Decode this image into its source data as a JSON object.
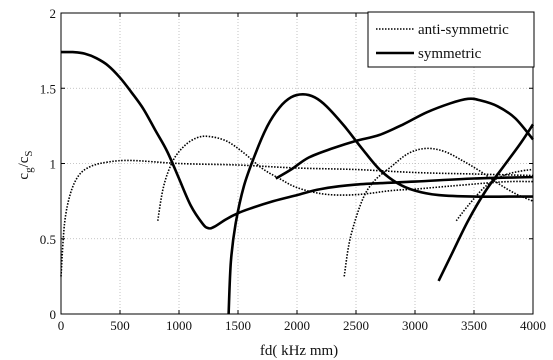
{
  "chart_data": {
    "type": "line",
    "xlabel": "fd( kHz mm)",
    "ylabel_main": "c",
    "ylabel_sub1": "g",
    "ylabel_mid": "/c",
    "ylabel_sub2": "S",
    "xlim": [
      0,
      4000
    ],
    "ylim": [
      0,
      2
    ],
    "xticks": [
      0,
      500,
      1000,
      1500,
      2000,
      2500,
      3000,
      3500,
      4000
    ],
    "xtick_labels": [
      "0",
      "500",
      "1000",
      "1500",
      "2000",
      "2500",
      "3000",
      "3500",
      "4000"
    ],
    "yticks": [
      0,
      0.5,
      1,
      1.5,
      2
    ],
    "ytick_labels": [
      "0",
      "0.5",
      "1",
      "1.5",
      "2"
    ],
    "grid": true,
    "legend_position": "top-right",
    "legend": [
      {
        "label": "anti-symmetric",
        "style": "dotted"
      },
      {
        "label": "symmetric",
        "style": "solid"
      }
    ],
    "series": [
      {
        "group": "anti-symmetric",
        "style": "dotted",
        "points": [
          [
            0,
            0.25
          ],
          [
            30,
            0.6
          ],
          [
            80,
            0.8
          ],
          [
            150,
            0.92
          ],
          [
            250,
            0.98
          ],
          [
            400,
            1.01
          ],
          [
            600,
            1.02
          ],
          [
            1000,
            1.0
          ],
          [
            1500,
            0.99
          ],
          [
            2000,
            0.97
          ],
          [
            2500,
            0.96
          ],
          [
            3000,
            0.94
          ],
          [
            3500,
            0.93
          ],
          [
            4000,
            0.92
          ]
        ]
      },
      {
        "group": "anti-symmetric",
        "style": "dotted",
        "points": [
          [
            820,
            0.62
          ],
          [
            870,
            0.85
          ],
          [
            950,
            1.02
          ],
          [
            1050,
            1.12
          ],
          [
            1150,
            1.17
          ],
          [
            1250,
            1.18
          ],
          [
            1400,
            1.15
          ],
          [
            1550,
            1.07
          ],
          [
            1700,
            0.97
          ],
          [
            1850,
            0.9
          ],
          [
            2000,
            0.84
          ],
          [
            2200,
            0.8
          ],
          [
            2400,
            0.79
          ],
          [
            2600,
            0.8
          ],
          [
            2800,
            0.82
          ],
          [
            3000,
            0.83
          ],
          [
            3300,
            0.85
          ],
          [
            3600,
            0.87
          ],
          [
            3800,
            0.88
          ],
          [
            4000,
            0.88
          ]
        ]
      },
      {
        "group": "anti-symmetric",
        "style": "dotted",
        "points": [
          [
            2400,
            0.25
          ],
          [
            2450,
            0.5
          ],
          [
            2550,
            0.75
          ],
          [
            2650,
            0.88
          ],
          [
            2800,
            0.98
          ],
          [
            2950,
            1.07
          ],
          [
            3100,
            1.1
          ],
          [
            3250,
            1.08
          ],
          [
            3400,
            1.02
          ],
          [
            3550,
            0.95
          ],
          [
            3700,
            0.87
          ],
          [
            3850,
            0.8
          ],
          [
            4000,
            0.75
          ]
        ]
      },
      {
        "group": "anti-symmetric",
        "style": "dotted",
        "points": [
          [
            3350,
            0.62
          ],
          [
            3450,
            0.72
          ],
          [
            3600,
            0.85
          ],
          [
            3750,
            0.92
          ],
          [
            3900,
            0.95
          ],
          [
            4000,
            0.96
          ]
        ]
      },
      {
        "group": "symmetric",
        "style": "solid",
        "points": [
          [
            0,
            1.74
          ],
          [
            100,
            1.74
          ],
          [
            200,
            1.73
          ],
          [
            300,
            1.7
          ],
          [
            400,
            1.65
          ],
          [
            500,
            1.57
          ],
          [
            600,
            1.47
          ],
          [
            700,
            1.36
          ],
          [
            800,
            1.22
          ],
          [
            900,
            1.08
          ],
          [
            1000,
            0.9
          ],
          [
            1100,
            0.72
          ],
          [
            1200,
            0.6
          ],
          [
            1250,
            0.57
          ],
          [
            1300,
            0.58
          ],
          [
            1400,
            0.63
          ],
          [
            1500,
            0.67
          ],
          [
            1600,
            0.7
          ],
          [
            1800,
            0.75
          ],
          [
            2000,
            0.79
          ],
          [
            2200,
            0.83
          ],
          [
            2500,
            0.86
          ],
          [
            3000,
            0.88
          ],
          [
            3500,
            0.9
          ],
          [
            4000,
            0.91
          ]
        ]
      },
      {
        "group": "symmetric",
        "style": "solid",
        "points": [
          [
            1420,
            0.0
          ],
          [
            1440,
            0.35
          ],
          [
            1480,
            0.6
          ],
          [
            1550,
            0.85
          ],
          [
            1650,
            1.07
          ],
          [
            1750,
            1.25
          ],
          [
            1850,
            1.37
          ],
          [
            1950,
            1.44
          ],
          [
            2050,
            1.46
          ],
          [
            2150,
            1.44
          ],
          [
            2250,
            1.38
          ],
          [
            2400,
            1.25
          ],
          [
            2550,
            1.1
          ],
          [
            2700,
            0.96
          ],
          [
            2850,
            0.87
          ],
          [
            3000,
            0.82
          ],
          [
            3200,
            0.79
          ],
          [
            3500,
            0.78
          ],
          [
            3800,
            0.78
          ],
          [
            4000,
            0.78
          ]
        ]
      },
      {
        "group": "symmetric",
        "style": "solid",
        "points": [
          [
            1820,
            0.9
          ],
          [
            1950,
            0.96
          ],
          [
            2100,
            1.04
          ],
          [
            2300,
            1.1
          ],
          [
            2500,
            1.15
          ],
          [
            2700,
            1.19
          ],
          [
            2900,
            1.26
          ],
          [
            3100,
            1.34
          ],
          [
            3300,
            1.4
          ],
          [
            3450,
            1.43
          ],
          [
            3550,
            1.42
          ],
          [
            3700,
            1.38
          ],
          [
            3850,
            1.3
          ],
          [
            4000,
            1.16
          ]
        ]
      },
      {
        "group": "symmetric",
        "style": "solid",
        "points": [
          [
            3200,
            0.22
          ],
          [
            3300,
            0.38
          ],
          [
            3450,
            0.62
          ],
          [
            3600,
            0.82
          ],
          [
            3750,
            0.98
          ],
          [
            3900,
            1.14
          ],
          [
            4000,
            1.26
          ]
        ]
      }
    ]
  }
}
